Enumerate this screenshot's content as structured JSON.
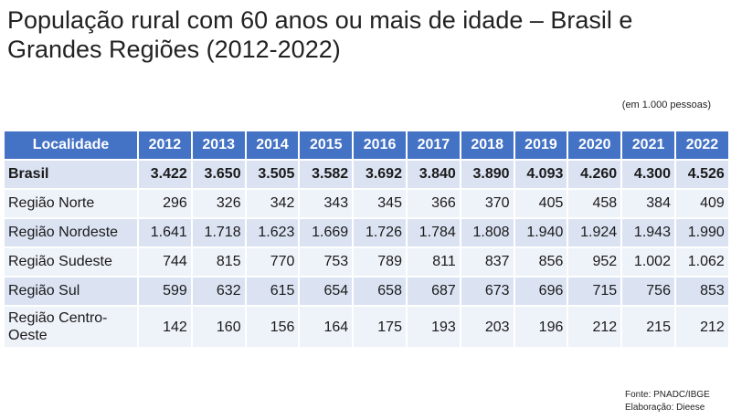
{
  "title": "População rural com 60 anos ou mais de idade – Brasil e Grandes Regiões (2012-2022)",
  "unit_note": "(em 1.000 pessoas)",
  "table": {
    "header_label": "Localidade",
    "years": [
      "2012",
      "2013",
      "2014",
      "2015",
      "2016",
      "2017",
      "2018",
      "2019",
      "2020",
      "2021",
      "2022"
    ],
    "rows": [
      {
        "name": "Brasil",
        "values": [
          "3.422",
          "3.650",
          "3.505",
          "3.582",
          "3.692",
          "3.840",
          "3.890",
          "4.093",
          "4.260",
          "4.300",
          "4.526"
        ]
      },
      {
        "name": "Região Norte",
        "values": [
          "296",
          "326",
          "342",
          "343",
          "345",
          "366",
          "370",
          "405",
          "458",
          "384",
          "409"
        ]
      },
      {
        "name": "Região Nordeste",
        "values": [
          "1.641",
          "1.718",
          "1.623",
          "1.669",
          "1.726",
          "1.784",
          "1.808",
          "1.940",
          "1.924",
          "1.943",
          "1.990"
        ]
      },
      {
        "name": "Região Sudeste",
        "values": [
          "744",
          "815",
          "770",
          "753",
          "789",
          "811",
          "837",
          "856",
          "952",
          "1.002",
          "1.062"
        ]
      },
      {
        "name": "Região Sul",
        "values": [
          "599",
          "632",
          "615",
          "654",
          "658",
          "687",
          "673",
          "696",
          "715",
          "756",
          "853"
        ]
      },
      {
        "name": "Região Centro-Oeste",
        "values": [
          "142",
          "160",
          "156",
          "164",
          "175",
          "193",
          "203",
          "196",
          "212",
          "215",
          "212"
        ]
      }
    ]
  },
  "source": {
    "line1": "Fonte: PNADC/IBGE",
    "line2": "Elaboração: Dieese"
  }
}
